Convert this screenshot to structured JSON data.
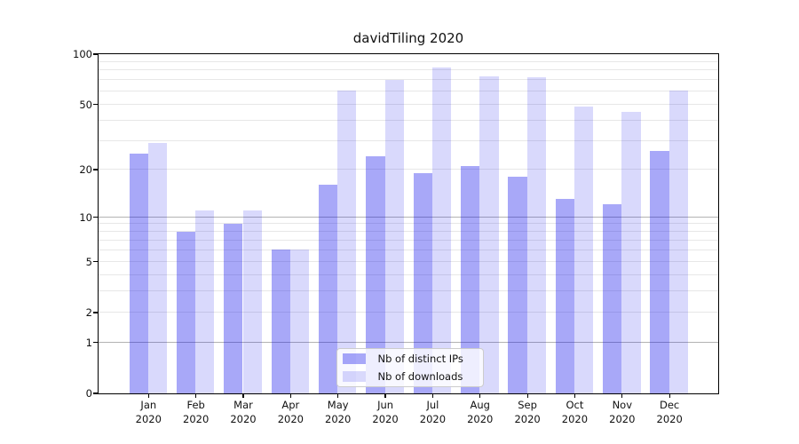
{
  "title": "davidTiling 2020",
  "colors": {
    "bar_distinct_ips": "rgba(0,0,235,0.34)",
    "bar_downloads": "rgba(0,0,235,0.15)",
    "grid_major": "#b3b3b3",
    "grid_minor": "#e7e7e7",
    "spine": "#000000"
  },
  "chart_data": {
    "type": "bar",
    "title": "davidTiling 2020",
    "xlabel": "",
    "ylabel": "",
    "yscale": "log1p",
    "ylim": [
      0,
      100
    ],
    "grid": "on",
    "legend_position": "lower center",
    "categories": [
      "Jan\n2020",
      "Feb\n2020",
      "Mar\n2020",
      "Apr\n2020",
      "May\n2020",
      "Jun\n2020",
      "Jul\n2020",
      "Aug\n2020",
      "Sep\n2020",
      "Oct\n2020",
      "Nov\n2020",
      "Dec\n2020"
    ],
    "series": [
      {
        "name": "Nb of distinct IPs",
        "color": "rgba(0,0,235,0.34)",
        "values": [
          25,
          8,
          9,
          6,
          16,
          24,
          19,
          21,
          18,
          13,
          12,
          26
        ]
      },
      {
        "name": "Nb of downloads",
        "color": "rgba(0,0,235,0.15)",
        "values": [
          29,
          11,
          11,
          6,
          60,
          70,
          83,
          73,
          72,
          48,
          45,
          60
        ]
      }
    ],
    "y_tick_labels": [
      100,
      50,
      20,
      10,
      5,
      2,
      1,
      0
    ],
    "grid_major_values": [
      1,
      10
    ],
    "grid_minor_values": [
      2,
      3,
      4,
      5,
      6,
      7,
      8,
      9,
      20,
      30,
      40,
      50,
      60,
      70,
      80,
      90
    ]
  }
}
